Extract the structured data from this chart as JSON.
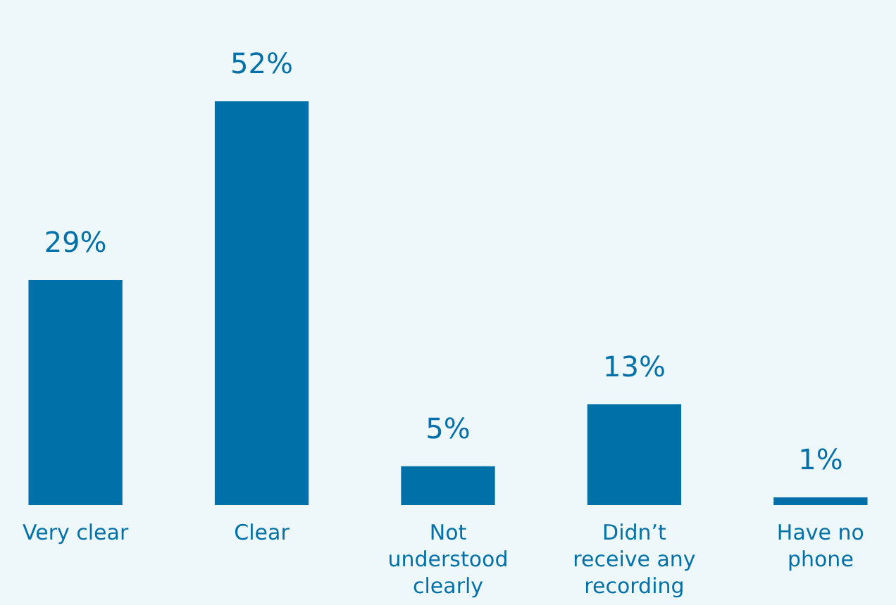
{
  "chart_data": {
    "type": "bar",
    "categories": [
      "Very clear",
      "Clear",
      "Not understood clearly",
      "Didn’t receive any recording",
      "Have no phone"
    ],
    "values": [
      29,
      52,
      5,
      13,
      1
    ],
    "value_labels": [
      "29%",
      "52%",
      "5%",
      "13%",
      "1%"
    ],
    "color": "#0070a8"
  }
}
